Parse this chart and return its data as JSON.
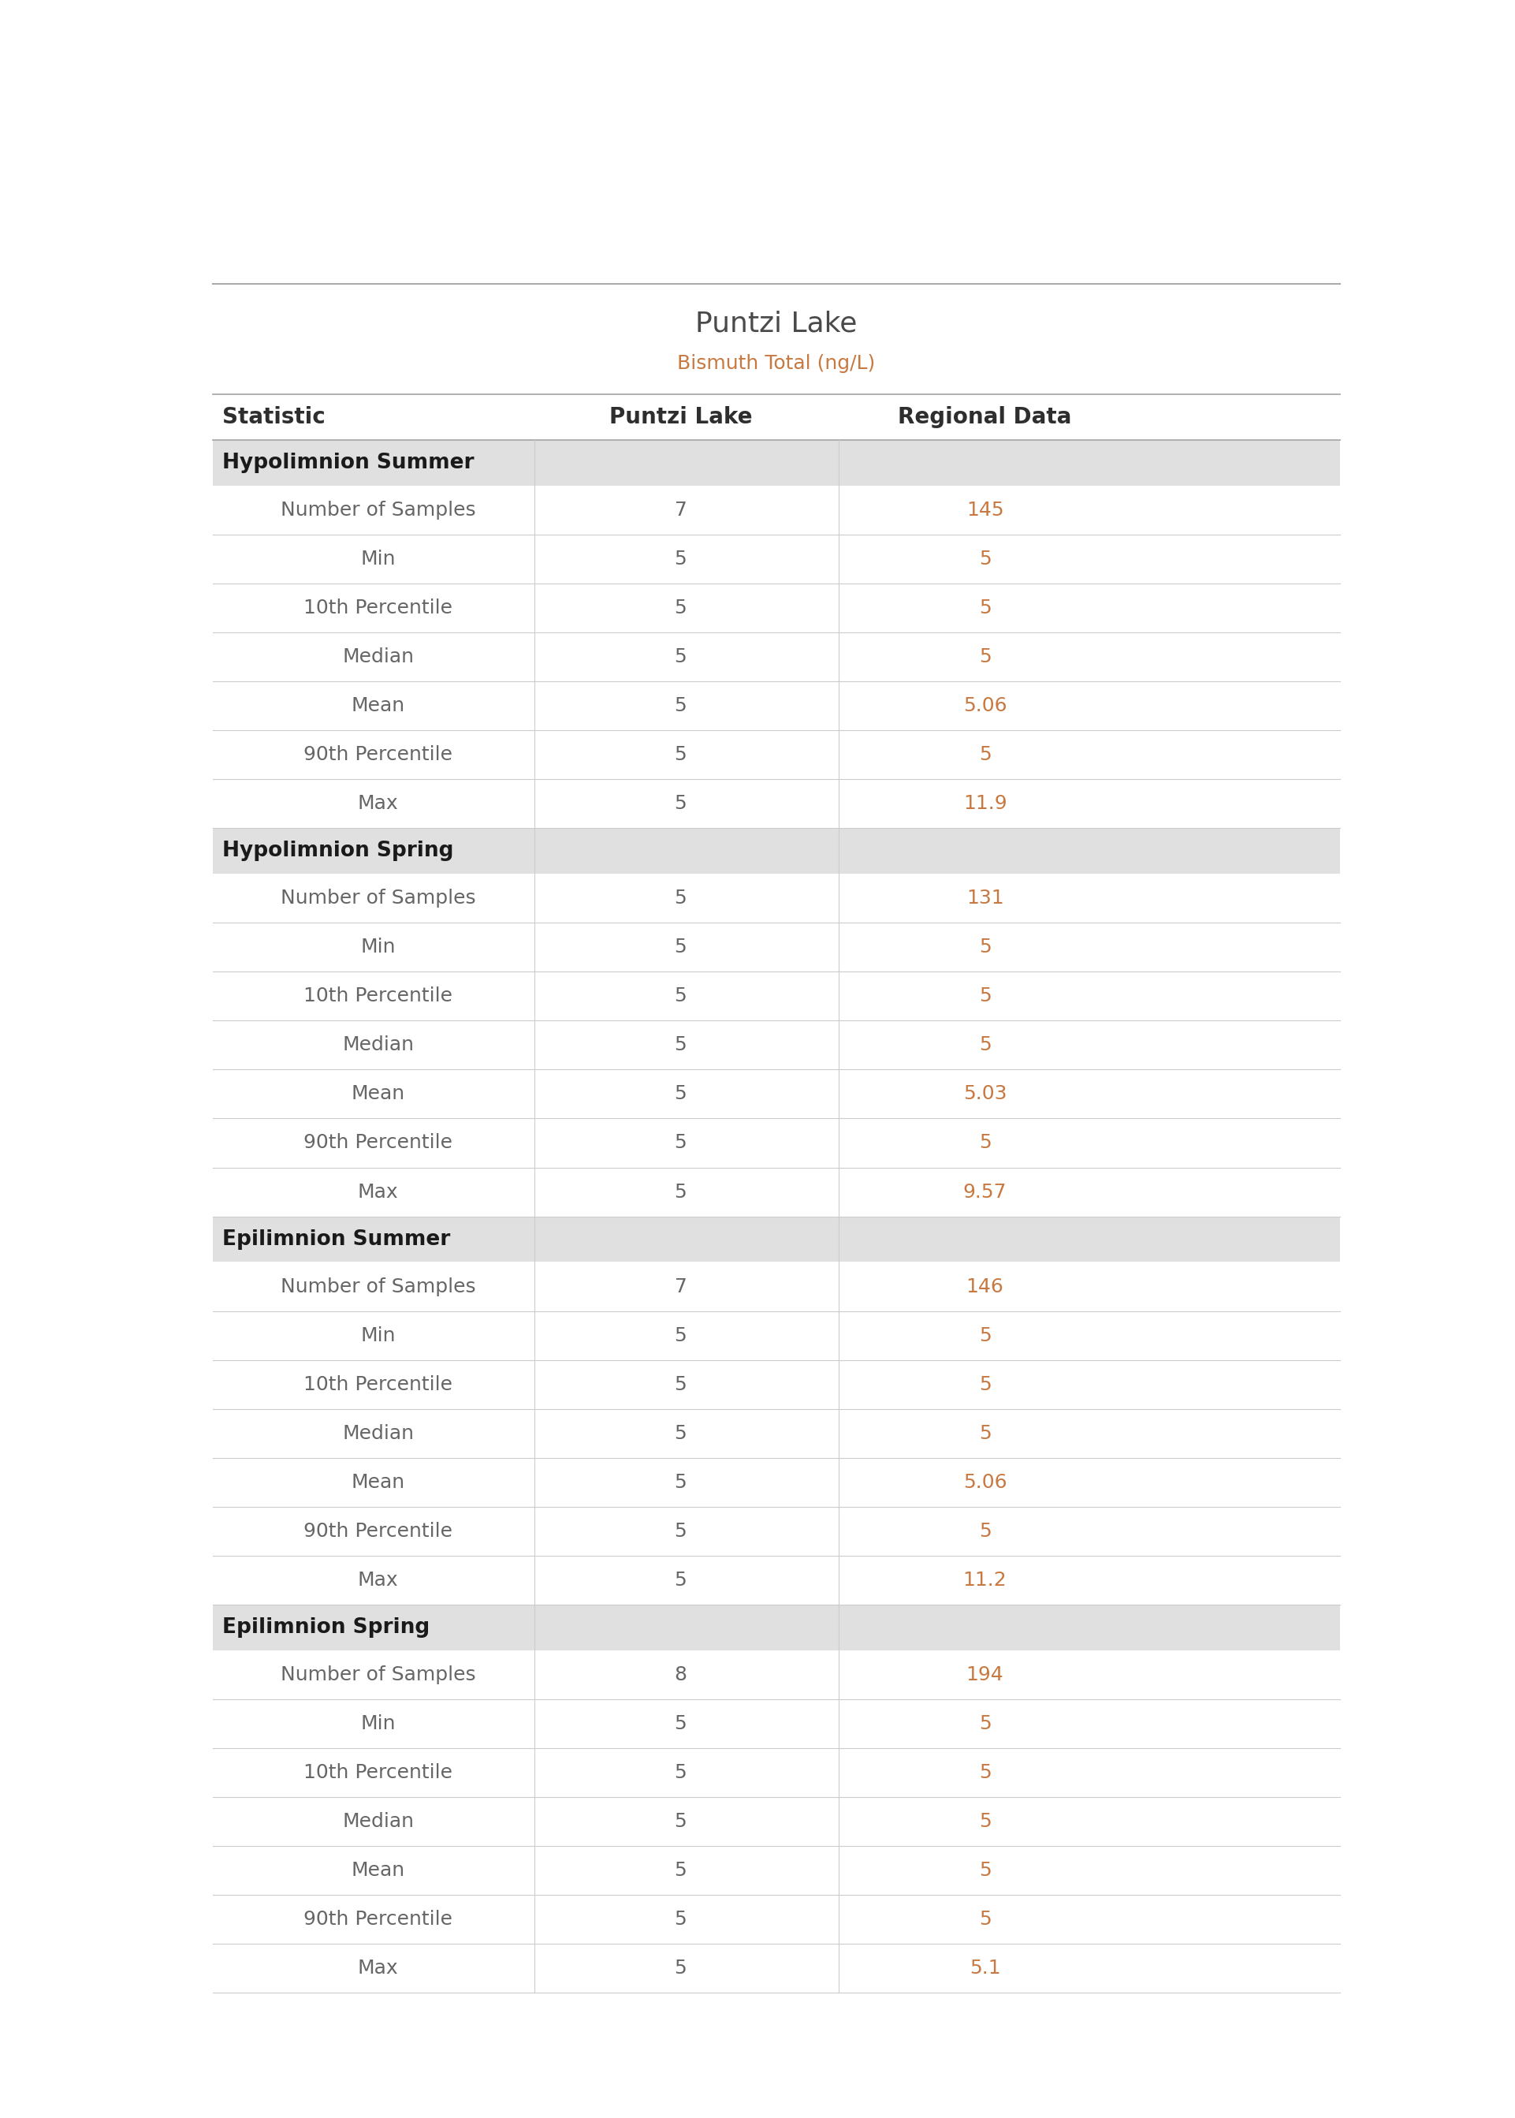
{
  "title": "Puntzi Lake",
  "subtitle": "Bismuth Total (ng/L)",
  "col_headers": [
    "Statistic",
    "Puntzi Lake",
    "Regional Data"
  ],
  "sections": [
    {
      "section_label": "Hypolimnion Summer",
      "rows": [
        [
          "Number of Samples",
          "7",
          "145"
        ],
        [
          "Min",
          "5",
          "5"
        ],
        [
          "10th Percentile",
          "5",
          "5"
        ],
        [
          "Median",
          "5",
          "5"
        ],
        [
          "Mean",
          "5",
          "5.06"
        ],
        [
          "90th Percentile",
          "5",
          "5"
        ],
        [
          "Max",
          "5",
          "11.9"
        ]
      ]
    },
    {
      "section_label": "Hypolimnion Spring",
      "rows": [
        [
          "Number of Samples",
          "5",
          "131"
        ],
        [
          "Min",
          "5",
          "5"
        ],
        [
          "10th Percentile",
          "5",
          "5"
        ],
        [
          "Median",
          "5",
          "5"
        ],
        [
          "Mean",
          "5",
          "5.03"
        ],
        [
          "90th Percentile",
          "5",
          "5"
        ],
        [
          "Max",
          "5",
          "9.57"
        ]
      ]
    },
    {
      "section_label": "Epilimnion Summer",
      "rows": [
        [
          "Number of Samples",
          "7",
          "146"
        ],
        [
          "Min",
          "5",
          "5"
        ],
        [
          "10th Percentile",
          "5",
          "5"
        ],
        [
          "Median",
          "5",
          "5"
        ],
        [
          "Mean",
          "5",
          "5.06"
        ],
        [
          "90th Percentile",
          "5",
          "5"
        ],
        [
          "Max",
          "5",
          "11.2"
        ]
      ]
    },
    {
      "section_label": "Epilimnion Spring",
      "rows": [
        [
          "Number of Samples",
          "8",
          "194"
        ],
        [
          "Min",
          "5",
          "5"
        ],
        [
          "10th Percentile",
          "5",
          "5"
        ],
        [
          "Median",
          "5",
          "5"
        ],
        [
          "Mean",
          "5",
          "5"
        ],
        [
          "90th Percentile",
          "5",
          "5"
        ],
        [
          "Max",
          "5",
          "5.1"
        ]
      ]
    }
  ],
  "title_color": "#4a4a4a",
  "subtitle_color": "#c87941",
  "header_text_color": "#2e2e2e",
  "section_bg_color": "#e0e0e0",
  "section_text_color": "#1a1a1a",
  "data_text_color": "#666666",
  "regional_data_color": "#c87941",
  "row_line_color": "#cccccc",
  "header_line_color": "#aaaaaa",
  "top_line_color": "#aaaaaa",
  "white_bg": "#ffffff",
  "title_fontsize": 26,
  "subtitle_fontsize": 18,
  "header_fontsize": 20,
  "section_fontsize": 19,
  "data_fontsize": 18
}
